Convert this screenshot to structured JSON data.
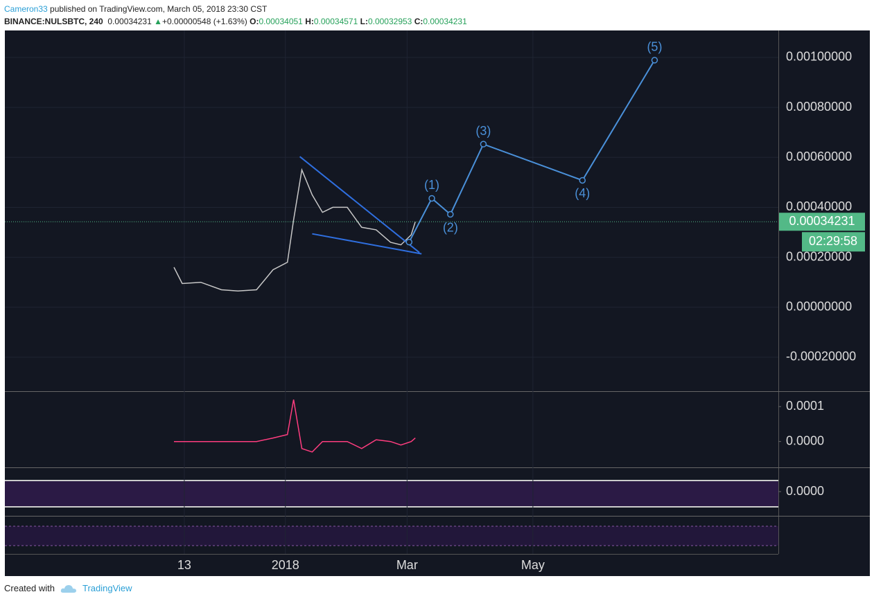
{
  "header": {
    "author": "Cameron33",
    "published": "published on TradingView.com, March 05, 2018 23:30 CST",
    "symbol": "BINANCE:NULSBTC, 240",
    "price": "0.00034231",
    "change": "+0.00000548 (+1.63%)",
    "ohlc": [
      {
        "label": "O:",
        "value": "0.00034051"
      },
      {
        "label": "H:",
        "value": "0.00034571"
      },
      {
        "label": "L:",
        "value": "0.00032953"
      },
      {
        "label": "C:",
        "value": "0.00034231"
      }
    ]
  },
  "footer": {
    "created": "Created with",
    "brand": "TradingView"
  },
  "chart_data": [
    {
      "type": "line",
      "color": "#c8c8c8",
      "x": [
        "2017-11-08",
        "2017-11-12",
        "2017-11-21",
        "2017-12-01",
        "2017-12-09",
        "2017-12-18",
        "2017-12-26",
        "2018-01-02",
        "2018-01-05",
        "2018-01-09",
        "2018-01-14",
        "2018-01-19",
        "2018-01-24",
        "2018-01-31",
        "2018-02-07",
        "2018-02-14",
        "2018-02-21",
        "2018-02-26",
        "2018-03-03",
        "2018-03-05"
      ],
      "values": [
        0.00016,
        9.5e-05,
        0.0001,
        7e-05,
        6.5e-05,
        7e-05,
        0.00015,
        0.00018,
        0.00035,
        0.00055,
        0.00045,
        0.00038,
        0.0004,
        0.0004,
        0.00032,
        0.00031,
        0.00026,
        0.00025,
        0.00029,
        0.00034231
      ],
      "waves": {
        "color": "#4a90d9",
        "x": [
          "2018-03-02",
          "2018-03-13",
          "2018-03-22",
          "2018-04-07",
          "2018-05-25",
          "2018-06-29"
        ],
        "values": [
          0.000261,
          0.000436,
          0.000372,
          0.000653,
          0.000508,
          0.000989
        ],
        "labels": [
          null,
          "(1)",
          "(2)",
          "(3)",
          "(4)",
          "(5)"
        ]
      },
      "trendlines": [
        {
          "x": [
            "2018-01-08",
            "2018-03-07"
          ],
          "values": [
            0.000603,
            0.000219
          ]
        },
        {
          "x": [
            "2018-01-14",
            "2018-03-08"
          ],
          "values": [
            0.000294,
            0.000214
          ]
        }
      ],
      "last_price": {
        "value": 0.00034231,
        "label": "0.00034231",
        "countdown": "02:29:58",
        "color": "#53b987"
      },
      "xlim": [
        "2017-08-18",
        "2018-08-28"
      ],
      "xticks": [
        {
          "value": "2017-11-13",
          "label": "13"
        },
        {
          "value": "2018-01-01",
          "label": "2018"
        },
        {
          "value": "2018-03-01",
          "label": "Mar"
        },
        {
          "value": "2018-05-01",
          "label": "May"
        }
      ],
      "ylim": [
        -0.000336,
        0.001108
      ],
      "yticks": [
        {
          "value": 0.001,
          "label": "0.00100000"
        },
        {
          "value": 0.0008,
          "label": "0.00080000"
        },
        {
          "value": 0.0006,
          "label": "0.00060000"
        },
        {
          "value": 0.0004,
          "label": "0.00040000"
        },
        {
          "value": 0.0002,
          "label": "0.00020000"
        },
        {
          "value": 0,
          "label": "0.00000000"
        },
        {
          "value": -0.0002,
          "label": "-0.00020000"
        }
      ],
      "grid": true
    },
    {
      "type": "line",
      "color": "#ff3d7f",
      "x": [
        "2017-11-08",
        "2017-11-12",
        "2017-11-21",
        "2017-12-01",
        "2017-12-09",
        "2017-12-18",
        "2017-12-26",
        "2018-01-02",
        "2018-01-05",
        "2018-01-09",
        "2018-01-14",
        "2018-01-19",
        "2018-01-24",
        "2018-01-31",
        "2018-02-07",
        "2018-02-14",
        "2018-02-21",
        "2018-02-26",
        "2018-03-03",
        "2018-03-05"
      ],
      "values": [
        0,
        0,
        0,
        0,
        0,
        0,
        1e-05,
        2e-05,
        0.00012,
        -2e-05,
        -3e-05,
        0,
        0,
        0,
        -2e-05,
        5e-06,
        0,
        -1e-05,
        0,
        1e-05
      ],
      "ylim": [
        -7.4e-05,
        0.000144
      ],
      "yticks": [
        {
          "value": 0.0001,
          "label": "0.0001"
        },
        {
          "value": 0,
          "label": "0.0000"
        }
      ]
    },
    {
      "type": "band",
      "ylim": [
        -6e-05,
        6e-05
      ],
      "yticks": [
        {
          "value": 0,
          "label": "0.0000"
        }
      ]
    }
  ]
}
